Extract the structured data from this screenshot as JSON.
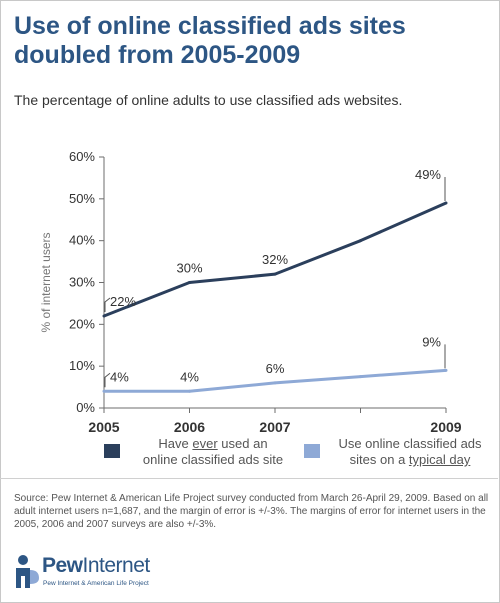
{
  "title": "Use of online classified ads sites doubled from 2005-2009",
  "subtitle": "The percentage of online adults to use classified ads websites.",
  "legend": {
    "ever_pre": "Have ",
    "ever_u": "ever",
    "ever_post": " used an",
    "ever_line2": "online classified ads site",
    "typical_line1": "Use online classified ads",
    "typical_pre": "sites on a ",
    "typical_u": "typical day"
  },
  "source": "Source: Pew Internet & American Life Project survey conducted from March 26-April 29, 2009. Based on all adult internet users n=1,687, and the margin of error is +/-3%. The margins of error for internet users in the 2005, 2006 and 2007 surveys are also +/-3%.",
  "logo": {
    "word_bold": "Pew",
    "word_light": "Internet",
    "tagline": "Pew Internet & American Life Project"
  },
  "colors": {
    "title": "#2d5684",
    "ever": "#2b3f5c",
    "typical": "#8ea9d6",
    "grid": "#d9d9d9",
    "axis": "#6d6d6d",
    "text": "#333333"
  },
  "chart_data": {
    "type": "line",
    "title": "",
    "xlabel": "",
    "ylabel": "% of internet users",
    "xlim": [
      2005,
      2009
    ],
    "ylim": [
      0,
      60
    ],
    "x_ticks": [
      2005,
      2006,
      2007,
      2008,
      2009
    ],
    "x_tick_labels": [
      "2005",
      "2006",
      "2007",
      "",
      "2009"
    ],
    "y_ticks": [
      0,
      10,
      20,
      30,
      40,
      50,
      60
    ],
    "y_tick_labels": [
      "0%",
      "10%",
      "20%",
      "30%",
      "40%",
      "50%",
      "60%"
    ],
    "grid": false,
    "legend_position": "bottom",
    "series": [
      {
        "name": "Have ever used an online classified ads site",
        "key": "ever",
        "x": [
          2005,
          2006,
          2007,
          2008,
          2009
        ],
        "values": [
          22,
          30,
          32,
          40,
          49
        ],
        "labels": [
          "22%",
          "30%",
          "32%",
          "",
          "49%"
        ]
      },
      {
        "name": "Use online classified ads sites on a typical day",
        "key": "typical",
        "x": [
          2005,
          2006,
          2007,
          2008,
          2009
        ],
        "values": [
          4,
          4,
          6,
          7.5,
          9
        ],
        "labels": [
          "4%",
          "4%",
          "6%",
          "",
          "9%"
        ]
      }
    ]
  }
}
